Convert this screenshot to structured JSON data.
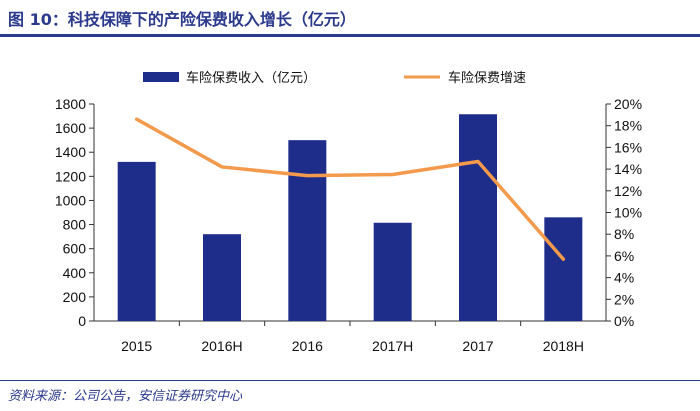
{
  "header": {
    "title": "图 10：科技保障下的产险保费收入增长（亿元）"
  },
  "footer": {
    "source": "资料来源：公司公告，安信证券研究中心"
  },
  "chart_data": {
    "type": "bar",
    "title": "科技保障下的产险保费收入增长（亿元）",
    "categories": [
      "2015",
      "2016H",
      "2016",
      "2017H",
      "2017",
      "2018H"
    ],
    "series": [
      {
        "name": "车险保费收入（亿元）",
        "type": "bar",
        "axis": "left",
        "color": "#1f2d8a",
        "values": [
          1320,
          720,
          1500,
          815,
          1715,
          860
        ]
      },
      {
        "name": "车险保费增速",
        "type": "line",
        "axis": "right",
        "color": "#f39a4c",
        "values": [
          18.6,
          14.2,
          13.4,
          13.5,
          14.7,
          5.7
        ]
      }
    ],
    "left_axis": {
      "min": 0,
      "max": 1800,
      "step": 200,
      "tick_labels": [
        "0",
        "200",
        "400",
        "600",
        "800",
        "1000",
        "1200",
        "1400",
        "1600",
        "1800"
      ]
    },
    "right_axis": {
      "min": 0,
      "max": 20,
      "step": 2,
      "tick_labels": [
        "0%",
        "2%",
        "4%",
        "6%",
        "8%",
        "10%",
        "12%",
        "14%",
        "16%",
        "18%",
        "20%"
      ]
    },
    "legend": "top"
  }
}
